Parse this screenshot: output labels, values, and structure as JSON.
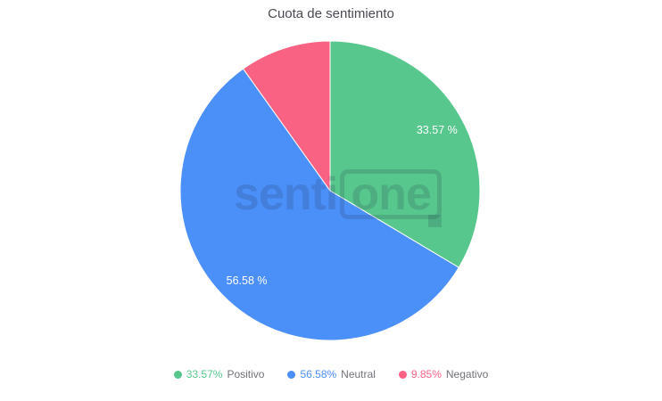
{
  "title": "Cuota de sentimiento",
  "watermark": {
    "text_left": "senti",
    "text_boxed": "one"
  },
  "chart_data": {
    "type": "pie",
    "title": "Cuota de sentimiento",
    "unit": "%",
    "total": 100,
    "start_angle_deg": 0,
    "direction": "clockwise",
    "legend_position": "bottom",
    "slice_border_color": "#ffffff",
    "slice_label_color": "#ffffff",
    "slices": [
      {
        "name": "Positivo",
        "value": 33.57,
        "color": "#57C78D",
        "slice_label": "33.57 %"
      },
      {
        "name": "Neutral",
        "value": 56.58,
        "color": "#4B8FF8",
        "slice_label": "56.58 %"
      },
      {
        "name": "Negativo",
        "value": 9.85,
        "color": "#FA6284",
        "slice_label": ""
      }
    ]
  },
  "legend": {
    "items": [
      {
        "pct": "33.57%",
        "name": "Positivo"
      },
      {
        "pct": "56.58%",
        "name": "Neutral"
      },
      {
        "pct": "9.85%",
        "name": "Negativo"
      }
    ]
  }
}
